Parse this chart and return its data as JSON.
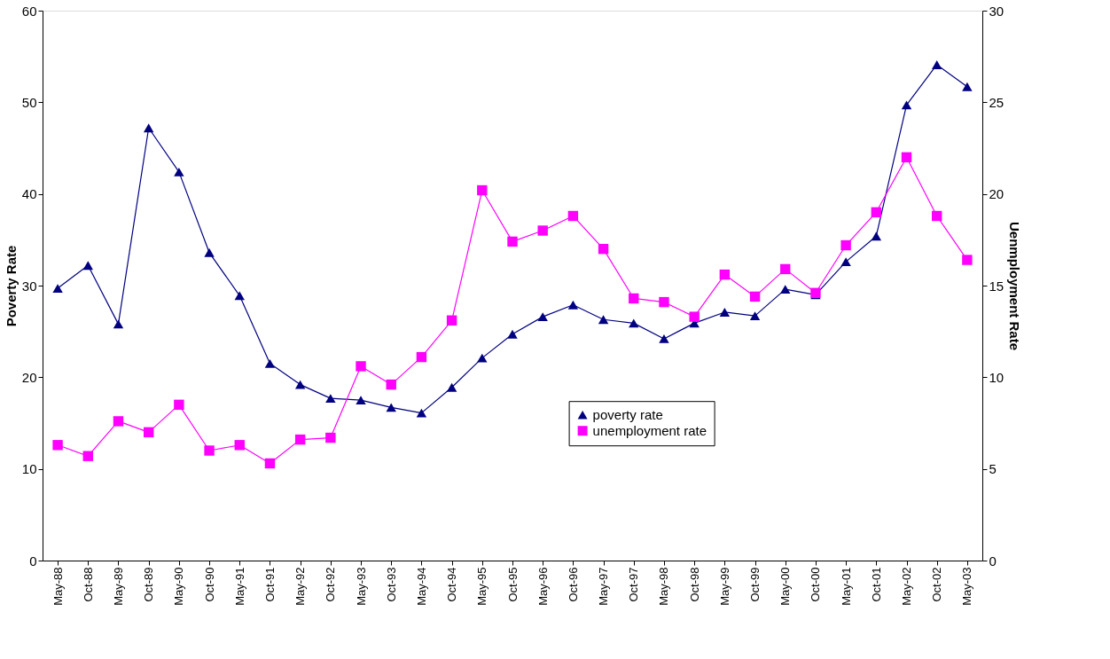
{
  "chart_data": {
    "type": "line",
    "categories": [
      "May-88",
      "Oct-88",
      "May-89",
      "Oct-89",
      "May-90",
      "Oct-90",
      "May-91",
      "Oct-91",
      "May-92",
      "Oct-92",
      "May-93",
      "Oct-93",
      "May-94",
      "Oct-94",
      "May-95",
      "Oct-95",
      "May-96",
      "Oct-96",
      "May-97",
      "Oct-97",
      "May-98",
      "Oct-98",
      "May-99",
      "Oct-99",
      "May-00",
      "Oct-00",
      "May-01",
      "Oct-01",
      "May-02",
      "Oct-02",
      "May-03"
    ],
    "series": [
      {
        "name": "poverty rate",
        "color": "#000080",
        "marker": "triangle",
        "values": [
          29.7,
          32.2,
          25.8,
          47.2,
          42.4,
          33.6,
          28.9,
          21.5,
          19.2,
          17.7,
          17.5,
          16.7,
          16.1,
          18.9,
          22.1,
          24.7,
          26.6,
          27.9,
          26.3,
          25.9,
          24.2,
          25.9,
          27.1,
          26.7,
          29.6,
          29.0,
          32.6,
          35.4,
          49.7,
          54.1,
          51.7
        ]
      },
      {
        "name": "unemployment rate",
        "color": "#ff00ff",
        "marker": "square",
        "axis": "y2",
        "values": [
          6.3,
          5.7,
          7.6,
          7.0,
          8.5,
          6.0,
          6.3,
          5.3,
          6.6,
          6.7,
          10.6,
          9.6,
          11.1,
          13.1,
          20.2,
          17.4,
          18.0,
          18.8,
          17.0,
          14.3,
          14.1,
          13.3,
          15.6,
          14.4,
          15.9,
          14.6,
          17.2,
          19.0,
          22.0,
          18.8,
          16.4
        ]
      }
    ],
    "ylabel": "Poverty Rate",
    "y2label": "Uenmployment Rate",
    "ylim": [
      0,
      60
    ],
    "yticks": [
      0,
      10,
      20,
      30,
      40,
      50,
      60
    ],
    "y2lim": [
      0,
      30
    ],
    "y2ticks": [
      0,
      5,
      10,
      15,
      20,
      25,
      30
    ],
    "grid": false,
    "legend": "center",
    "line_style": "solid"
  }
}
